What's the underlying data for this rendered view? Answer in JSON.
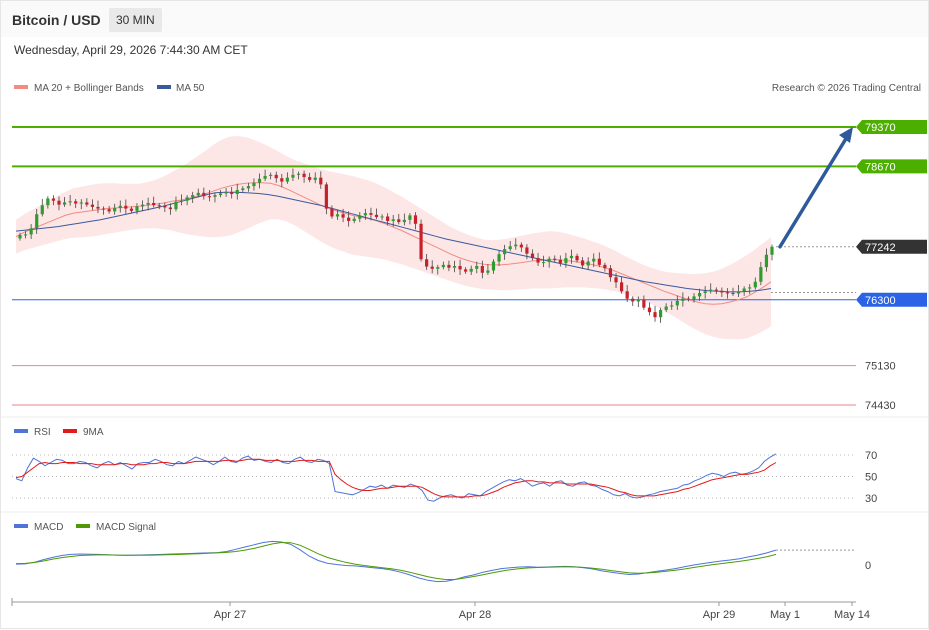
{
  "header": {
    "title": "Bitcoin / USD",
    "timeframe": "30 MIN",
    "timestamp": "Wednesday, April 29, 2026 7:44:30 AM CET"
  },
  "legend": {
    "ma20_label": "MA 20 + Bollinger Bands",
    "ma50_label": "MA 50",
    "ma20_color": "#f28b82",
    "ma50_color": "#3a5a9c",
    "copyright": "Research © 2026 Trading Central"
  },
  "rsi_legend": {
    "rsi_label": "RSI",
    "ma_label": "9MA",
    "rsi_color": "#4f73d9",
    "ma_color": "#e31a1a"
  },
  "macd_legend": {
    "macd_label": "MACD",
    "signal_label": "MACD Signal",
    "macd_color": "#4f73d9",
    "signal_color": "#4d9a06"
  },
  "colors": {
    "up": "#2e9c2e",
    "down": "#c8202b",
    "resistance": "#4caf00",
    "pivot": "#2b63e6",
    "support": "#e8838b",
    "last": "#333333",
    "arrow": "#2d5a9a"
  },
  "chart_data": {
    "type": "candlestick",
    "title": "Bitcoin / USD",
    "timeframe": "30 MIN",
    "ylim": [
      74200,
      80100
    ],
    "x_ticks": [
      "Apr 27",
      "Apr 28",
      "Apr 29",
      "May 1",
      "May 14"
    ],
    "levels": [
      {
        "kind": "resistance",
        "value": 79370,
        "label": "79370"
      },
      {
        "kind": "resistance",
        "value": 78670,
        "label": "78670"
      },
      {
        "kind": "last_price",
        "value": 77242,
        "label": "77242"
      },
      {
        "kind": "pivot",
        "value": 76300,
        "label": "76300"
      },
      {
        "kind": "support",
        "value": 75130,
        "label": "75130"
      },
      {
        "kind": "support",
        "value": 74430,
        "label": "74430"
      }
    ],
    "projection": {
      "from": 77242,
      "to": 79370,
      "direction": "up"
    },
    "closes": [
      77450,
      77460,
      77570,
      77820,
      77980,
      78100,
      78060,
      77990,
      78030,
      78050,
      78010,
      78030,
      77990,
      77950,
      77920,
      77910,
      77870,
      77930,
      77970,
      77920,
      77880,
      77960,
      77990,
      78020,
      77980,
      77970,
      77940,
      77910,
      78040,
      78060,
      78120,
      78160,
      78200,
      78140,
      78130,
      78160,
      78190,
      78210,
      78180,
      78250,
      78280,
      78320,
      78380,
      78450,
      78500,
      78520,
      78460,
      78400,
      78470,
      78520,
      78540,
      78480,
      78430,
      78470,
      78350,
      77920,
      77780,
      77820,
      77760,
      77700,
      77740,
      77800,
      77840,
      77810,
      77770,
      77780,
      77700,
      77730,
      77680,
      77720,
      77800,
      77650,
      77020,
      76890,
      76850,
      76880,
      76920,
      76870,
      76900,
      76840,
      76800,
      76850,
      76900,
      76780,
      76820,
      76980,
      77110,
      77200,
      77250,
      77280,
      77230,
      77120,
      77040,
      76960,
      76970,
      77030,
      77010,
      76950,
      77040,
      77080,
      77000,
      76910,
      76980,
      77030,
      76920,
      76860,
      76700,
      76610,
      76450,
      76320,
      76270,
      76300,
      76160,
      76080,
      75990,
      76120,
      76180,
      76200,
      76280,
      76320,
      76310,
      76360,
      76420,
      76450,
      76480,
      76460,
      76430,
      76420,
      76410,
      76450,
      76500,
      76520,
      76620,
      76880,
      77100,
      77242
    ],
    "ma20": [
      77420,
      77500,
      77560,
      77620,
      77680,
      77740,
      77800,
      77840,
      77860,
      77880,
      77900,
      77920,
      77930,
      77940,
      77950,
      77960,
      77980,
      78000,
      78020,
      78050,
      78070,
      78100,
      78140,
      78180,
      78230,
      78280,
      78320,
      78350,
      78370,
      78380,
      78380,
      78370,
      78330,
      78270,
      78200,
      78130,
      78060,
      77990,
      77930,
      77880,
      77840,
      77800,
      77770,
      77740,
      77700,
      77650,
      77590,
      77530,
      77460,
      77390,
      77320,
      77250,
      77180,
      77110,
      77050,
      77000,
      76960,
      76930,
      76920,
      76920,
      76930,
      76950,
      76970,
      76990,
      77000,
      77010,
      77010,
      77000,
      76980,
      76960,
      76930,
      76900,
      76860,
      76810,
      76750,
      76690,
      76630,
      76570,
      76510,
      76450,
      76400,
      76350,
      76300,
      76260,
      76230,
      76220,
      76230,
      76260,
      76300,
      76350,
      76430,
      76520,
      76620
    ],
    "ma50": [
      77520,
      77540,
      77560,
      77580,
      77600,
      77630,
      77660,
      77690,
      77720,
      77760,
      77800,
      77840,
      77880,
      77920,
      77960,
      78010,
      78060,
      78110,
      78160,
      78200,
      78210,
      78210,
      78200,
      78190,
      78170,
      78140,
      78100,
      78060,
      78020,
      77980,
      77930,
      77880,
      77830,
      77780,
      77730,
      77680,
      77630,
      77580,
      77530,
      77480,
      77430,
      77380,
      77340,
      77300,
      77260,
      77220,
      77180,
      77140,
      77100,
      77060,
      77020,
      76980,
      76940,
      76900,
      76860,
      76820,
      76780,
      76740,
      76700,
      76660,
      76620,
      76590,
      76560,
      76530,
      76500,
      76480,
      76460,
      76450,
      76440,
      76440,
      76450,
      76470,
      76500
    ],
    "rsi_ylim": [
      20,
      80
    ],
    "rsi_levels": [
      70,
      50,
      30
    ],
    "rsi": [
      48,
      46,
      58,
      67,
      64,
      60,
      63,
      66,
      65,
      62,
      62,
      64,
      63,
      60,
      58,
      62,
      64,
      61,
      63,
      60,
      57,
      62,
      63,
      63,
      66,
      64,
      61,
      60,
      64,
      62,
      65,
      68,
      66,
      64,
      61,
      64,
      68,
      64,
      63,
      67,
      69,
      65,
      66,
      64,
      63,
      66,
      63,
      62,
      66,
      68,
      64,
      63,
      66,
      65,
      62,
      36,
      35,
      34,
      33,
      35,
      38,
      41,
      40,
      42,
      39,
      42,
      41,
      40,
      43,
      41,
      37,
      28,
      27,
      30,
      32,
      33,
      31,
      30,
      34,
      33,
      32,
      36,
      39,
      42,
      45,
      47,
      46,
      48,
      45,
      41,
      43,
      44,
      41,
      45,
      46,
      42,
      41,
      44,
      45,
      42,
      41,
      38,
      36,
      33,
      32,
      34,
      31,
      30,
      31,
      33,
      34,
      36,
      37,
      38,
      39,
      42,
      43,
      46,
      48,
      51,
      53,
      52,
      50,
      53,
      54,
      52,
      53,
      55,
      58,
      64,
      68,
      71
    ],
    "rsi_ma": [
      49,
      50,
      54,
      58,
      62,
      63,
      62,
      62,
      63,
      63,
      63,
      62,
      62,
      62,
      61,
      61,
      61,
      61,
      62,
      62,
      61,
      61,
      61,
      62,
      62,
      63,
      63,
      62,
      62,
      62,
      63,
      64,
      64,
      64,
      64,
      64,
      65,
      65,
      64,
      65,
      66,
      66,
      66,
      65,
      65,
      65,
      64,
      64,
      64,
      65,
      65,
      65,
      64,
      64,
      64,
      52,
      47,
      43,
      40,
      38,
      37,
      37,
      38,
      39,
      39,
      40,
      41,
      41,
      41,
      41,
      40,
      37,
      34,
      32,
      31,
      31,
      31,
      31,
      31,
      32,
      32,
      33,
      35,
      37,
      40,
      42,
      44,
      45,
      46,
      46,
      45,
      45,
      44,
      44,
      44,
      43,
      43,
      43,
      43,
      43,
      42,
      41,
      40,
      38,
      36,
      35,
      33,
      32,
      32,
      32,
      32,
      33,
      34,
      35,
      36,
      38,
      39,
      41,
      43,
      45,
      47,
      48,
      49,
      50,
      51,
      52,
      52,
      53,
      54,
      56,
      60,
      63
    ],
    "macd_zero_label": "0",
    "macd": [
      10,
      12,
      30,
      60,
      85,
      105,
      118,
      122,
      120,
      118,
      114,
      110,
      108,
      110,
      112,
      115,
      118,
      122,
      124,
      128,
      132,
      135,
      138,
      150,
      175,
      200,
      225,
      250,
      262,
      255,
      230,
      170,
      100,
      50,
      20,
      5,
      -5,
      -10,
      -20,
      -30,
      -40,
      -55,
      -80,
      -110,
      -145,
      -170,
      -185,
      -180,
      -160,
      -130,
      -110,
      -80,
      -60,
      -40,
      -30,
      -22,
      -20,
      -25,
      -22,
      -18,
      -15,
      -20,
      -30,
      -45,
      -65,
      -80,
      -95,
      -105,
      -100,
      -85,
      -70,
      -55,
      -40,
      -20,
      0,
      15,
      30,
      45,
      55,
      70,
      90,
      110,
      135,
      165
    ],
    "macd_signal": [
      15,
      18,
      28,
      45,
      65,
      82,
      95,
      105,
      110,
      112,
      112,
      110,
      108,
      108,
      108,
      110,
      112,
      115,
      118,
      122,
      126,
      130,
      134,
      140,
      150,
      165,
      185,
      210,
      235,
      250,
      248,
      220,
      175,
      125,
      85,
      55,
      30,
      10,
      -5,
      -18,
      -30,
      -42,
      -58,
      -80,
      -105,
      -130,
      -150,
      -162,
      -160,
      -145,
      -128,
      -108,
      -88,
      -68,
      -52,
      -40,
      -32,
      -28,
      -25,
      -22,
      -20,
      -22,
      -27,
      -36,
      -48,
      -62,
      -76,
      -88,
      -92,
      -88,
      -80,
      -70,
      -58,
      -44,
      -28,
      -12,
      2,
      15,
      28,
      40,
      55,
      72,
      92,
      118
    ]
  }
}
